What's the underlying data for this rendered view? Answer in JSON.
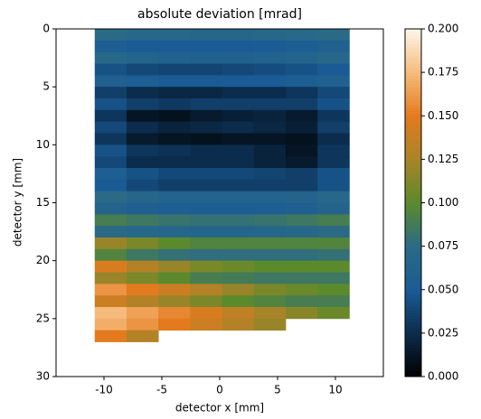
{
  "chart_data": {
    "type": "heatmap",
    "title": "absolute deviation [mrad]",
    "x_label": "detector x [mm]",
    "y_label": "detector y [mm]",
    "xlim": [
      -14.14,
      14.14
    ],
    "ylim": [
      30,
      0
    ],
    "xticks": [
      -10,
      -5,
      0,
      5,
      10
    ],
    "yticks": [
      0,
      5,
      10,
      15,
      20,
      25,
      30
    ],
    "zlim": [
      0,
      0.2
    ],
    "colorbar_ticks": [
      {
        "value": 0,
        "label": "0.000"
      },
      {
        "value": 0.025,
        "label": "0.025"
      },
      {
        "value": 0.05,
        "label": "0.050"
      },
      {
        "value": 0.075,
        "label": "0.075"
      },
      {
        "value": 0.1,
        "label": "0.100"
      },
      {
        "value": 0.125,
        "label": "0.125"
      },
      {
        "value": 0.15,
        "label": "0.150"
      },
      {
        "value": 0.175,
        "label": "0.175"
      },
      {
        "value": 0.2,
        "label": "0.200"
      }
    ],
    "colormap": [
      "#000000",
      "#0b2c4c",
      "#1a5b96",
      "#2a6a86",
      "#5b8a2c",
      "#a88428",
      "#e47a1e",
      "#f6bb7c",
      "#fdf6ea"
    ],
    "xbins": [
      -10.8,
      -8.05,
      -5.3,
      -2.55,
      0.2,
      2.95,
      5.7,
      8.45,
      11.2
    ],
    "ybins": [
      0,
      1,
      2,
      3,
      4,
      5,
      6,
      7,
      8,
      9,
      10,
      11,
      12,
      13,
      14,
      15,
      16,
      17,
      18,
      19,
      20,
      21,
      22,
      23,
      24,
      25,
      26,
      27
    ],
    "values": [
      [
        0.075,
        0.07,
        0.07,
        0.068,
        0.068,
        0.07,
        0.072,
        0.075
      ],
      [
        0.055,
        0.05,
        0.05,
        0.05,
        0.05,
        0.052,
        0.055,
        0.06
      ],
      [
        0.07,
        0.065,
        0.062,
        0.06,
        0.06,
        0.062,
        0.065,
        0.07
      ],
      [
        0.045,
        0.04,
        0.038,
        0.038,
        0.04,
        0.042,
        0.045,
        0.05
      ],
      [
        0.06,
        0.055,
        0.05,
        0.05,
        0.05,
        0.05,
        0.055,
        0.06
      ],
      [
        0.035,
        0.025,
        0.022,
        0.022,
        0.025,
        0.025,
        0.03,
        0.04
      ],
      [
        0.045,
        0.035,
        0.032,
        0.035,
        0.035,
        0.035,
        0.035,
        0.045
      ],
      [
        0.03,
        0.012,
        0.01,
        0.015,
        0.018,
        0.02,
        0.015,
        0.03
      ],
      [
        0.04,
        0.025,
        0.02,
        0.022,
        0.025,
        0.022,
        0.018,
        0.035
      ],
      [
        0.03,
        0.015,
        0.012,
        0.01,
        0.012,
        0.012,
        0.01,
        0.025
      ],
      [
        0.045,
        0.03,
        0.028,
        0.025,
        0.025,
        0.02,
        0.012,
        0.03
      ],
      [
        0.04,
        0.025,
        0.025,
        0.025,
        0.025,
        0.02,
        0.015,
        0.03
      ],
      [
        0.055,
        0.045,
        0.04,
        0.04,
        0.04,
        0.038,
        0.035,
        0.045
      ],
      [
        0.05,
        0.04,
        0.035,
        0.035,
        0.035,
        0.035,
        0.035,
        0.045
      ],
      [
        0.075,
        0.068,
        0.065,
        0.065,
        0.065,
        0.065,
        0.065,
        0.07
      ],
      [
        0.065,
        0.058,
        0.055,
        0.055,
        0.055,
        0.055,
        0.058,
        0.065
      ],
      [
        0.09,
        0.085,
        0.082,
        0.08,
        0.08,
        0.082,
        0.085,
        0.09
      ],
      [
        0.075,
        0.07,
        0.068,
        0.066,
        0.066,
        0.068,
        0.07,
        0.075
      ],
      [
        0.12,
        0.11,
        0.1,
        0.095,
        0.095,
        0.095,
        0.095,
        0.095
      ],
      [
        0.095,
        0.085,
        0.08,
        0.078,
        0.078,
        0.078,
        0.078,
        0.08
      ],
      [
        0.145,
        0.13,
        0.12,
        0.11,
        0.105,
        0.1,
        0.1,
        0.1
      ],
      [
        0.12,
        0.11,
        0.1,
        0.09,
        0.088,
        0.085,
        0.085,
        0.085
      ],
      [
        0.16,
        0.15,
        0.14,
        0.13,
        0.12,
        0.11,
        0.105,
        0.1
      ],
      [
        0.14,
        0.13,
        0.12,
        0.11,
        0.1,
        0.095,
        0.09,
        0.09
      ],
      [
        0.175,
        0.165,
        0.155,
        0.145,
        0.135,
        0.125,
        0.115,
        0.105
      ],
      [
        0.17,
        0.16,
        0.15,
        0.14,
        0.13,
        0.12,
        null,
        null
      ],
      [
        0.15,
        0.13,
        null,
        null,
        null,
        null,
        null,
        null
      ]
    ]
  }
}
